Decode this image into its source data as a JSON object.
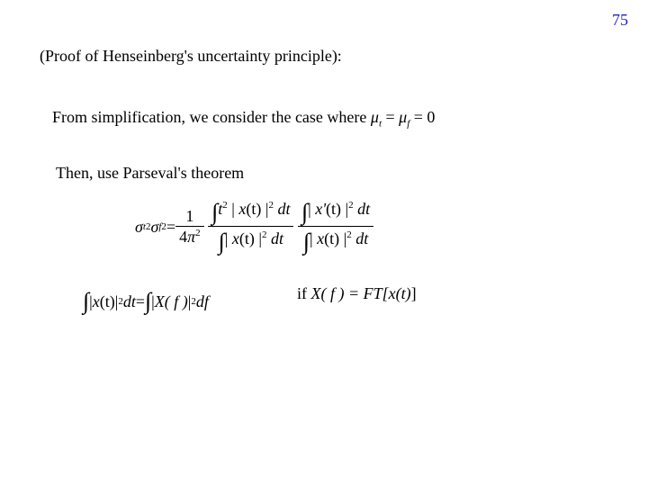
{
  "page": {
    "number": "75",
    "number_color": "#1f1fc2",
    "background_color": "#ffffff",
    "text_color": "#000000",
    "font_family": "Times New Roman",
    "base_fontsize_pt": 14
  },
  "heading": {
    "pre": "(Proof of Henseinberg's  uncertainty principle):"
  },
  "body": {
    "simplification_pre": "From simplification, we consider the case where ",
    "mu": "μ",
    "sub_t": "t",
    "sub_f": "f",
    "eq_zero": " = 0",
    "eq_sep": " = ",
    "parseval": "Then, use Parseval's theorem"
  },
  "eq1": {
    "sigma": "σ",
    "sub_t": "t",
    "sub_f": "f",
    "sq": "2",
    "equals": " = ",
    "frac_a_num": "1",
    "frac_a_den_pre": "4",
    "pi": "π",
    "frac_a_den_pow": "2",
    "num1": "t",
    "abs_open": "| ",
    "abs_close": " |",
    "x": "x",
    "paren_t": "(t)",
    "dt": " dt",
    "xprime": "x'",
    "paren_t2": "(t)"
  },
  "eq2": {
    "abs_open": "| ",
    "abs_close": " |",
    "x": "x",
    "paren_t": "(t)",
    "dt": " dt",
    "equals": " = ",
    "Xf": "X",
    "paren_f": "( f )",
    "df": " df",
    "if_pre": "if ",
    "ft": " = FT[",
    "xt": "x",
    "paren_t2": "(t)",
    "close": "]",
    "Xf_lone": "X",
    "paren_f_lone": "( f )",
    "sq": "2"
  }
}
